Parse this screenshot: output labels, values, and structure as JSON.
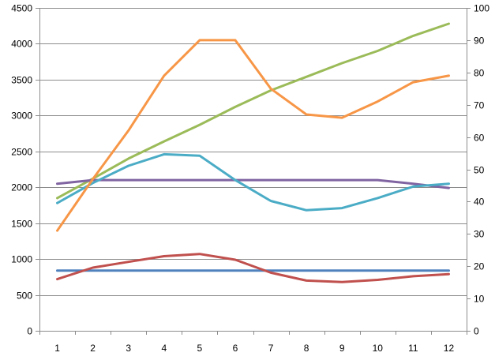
{
  "chart_data": {
    "type": "line",
    "title": "",
    "xlabel": "",
    "ylabel": "",
    "y2label": "",
    "categories": [
      "1",
      "2",
      "3",
      "4",
      "5",
      "6",
      "7",
      "8",
      "9",
      "10",
      "11",
      "12"
    ],
    "ylim": [
      0,
      4500
    ],
    "y2lim": [
      0,
      100
    ],
    "y_ticks": [
      "0",
      "500",
      "1000",
      "1500",
      "2000",
      "2500",
      "3000",
      "3500",
      "4000",
      "4500"
    ],
    "y2_ticks": [
      "0",
      "10",
      "20",
      "30",
      "40",
      "50",
      "60",
      "70",
      "80",
      "90",
      "100"
    ],
    "grid": true,
    "legend": "none",
    "series": [
      {
        "axis": "left",
        "color": "#4f81bd",
        "values": [
          840,
          840,
          840,
          840,
          840,
          840,
          840,
          840,
          840,
          840,
          840,
          840
        ]
      },
      {
        "axis": "left",
        "color": "#c0504d",
        "values": [
          720,
          880,
          960,
          1040,
          1070,
          990,
          810,
          700,
          680,
          710,
          760,
          790
        ]
      },
      {
        "axis": "left",
        "color": "#9bbb59",
        "values": [
          1850,
          2120,
          2400,
          2640,
          2870,
          3120,
          3350,
          3540,
          3730,
          3900,
          4110,
          4280
        ]
      },
      {
        "axis": "left",
        "color": "#8064a2",
        "values": [
          2050,
          2100,
          2100,
          2100,
          2100,
          2100,
          2100,
          2100,
          2100,
          2100,
          2050,
          1990
        ]
      },
      {
        "axis": "left",
        "color": "#4bacc6",
        "values": [
          1780,
          2060,
          2300,
          2460,
          2440,
          2100,
          1810,
          1680,
          1710,
          1850,
          2010,
          2050
        ]
      },
      {
        "axis": "right",
        "color": "#f79646",
        "values": [
          31,
          47,
          62,
          79,
          90,
          90,
          75,
          67,
          66,
          71,
          77,
          79
        ]
      }
    ]
  }
}
